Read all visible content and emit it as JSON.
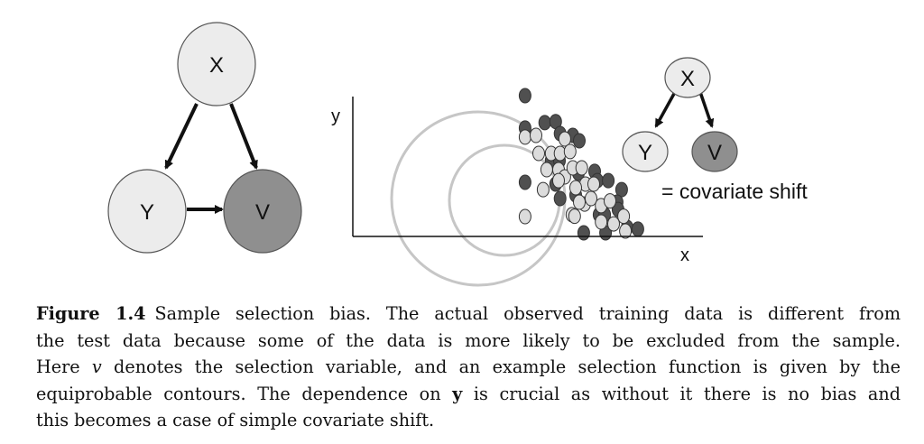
{
  "diagram_left": {
    "nodes": [
      {
        "id": "x",
        "label": "X",
        "fill": "#ececec"
      },
      {
        "id": "y",
        "label": "Y",
        "fill": "#ececec"
      },
      {
        "id": "v",
        "label": "V",
        "fill": "#8f8f8f"
      }
    ],
    "edges": [
      [
        "x",
        "y"
      ],
      [
        "x",
        "v"
      ],
      [
        "y",
        "v"
      ]
    ]
  },
  "diagram_right": {
    "nodes": [
      {
        "id": "x",
        "label": "X",
        "fill": "#ececec"
      },
      {
        "id": "y",
        "label": "Y",
        "fill": "#ececec"
      },
      {
        "id": "v",
        "label": "V",
        "fill": "#8f8f8f"
      }
    ],
    "edges": [
      [
        "x",
        "y"
      ],
      [
        "x",
        "v"
      ]
    ],
    "note": "= covariate shift"
  },
  "chart_data": {
    "type": "scatter",
    "xlabel": "x",
    "ylabel": "y",
    "grid": false,
    "series": [
      {
        "fill": "#505050",
        "points": [
          [
            77.3,
            90.7
          ],
          [
            77.3,
            69.8
          ],
          [
            86.1,
            73.3
          ],
          [
            91.0,
            74.0
          ],
          [
            98.7,
            65.1
          ],
          [
            93.0,
            66.3
          ],
          [
            101.6,
            61.6
          ],
          [
            89.0,
            48.8
          ],
          [
            92.7,
            48.8
          ],
          [
            101.2,
            40.7
          ],
          [
            108.5,
            41.9
          ],
          [
            77.3,
            34.9
          ],
          [
            91.0,
            33.7
          ],
          [
            93.0,
            24.4
          ],
          [
            100.0,
            26.7
          ],
          [
            109.7,
            36.0
          ],
          [
            114.6,
            36.0
          ],
          [
            120.6,
            30.2
          ],
          [
            118.6,
            22.1
          ],
          [
            110.5,
            14.0
          ],
          [
            113.0,
            14.0
          ],
          [
            119.0,
            17.4
          ],
          [
            123.1,
            5.8
          ],
          [
            127.9,
            4.7
          ],
          [
            113.4,
            2.3
          ],
          [
            103.6,
            2.3
          ]
        ]
      },
      {
        "fill": "#dcdcdc",
        "points": [
          [
            77.3,
            64.0
          ],
          [
            82.2,
            65.1
          ],
          [
            83.4,
            53.5
          ],
          [
            87.0,
            43.0
          ],
          [
            92.3,
            43.0
          ],
          [
            95.1,
            38.4
          ],
          [
            92.3,
            36.0
          ],
          [
            85.4,
            30.2
          ],
          [
            89.0,
            53.5
          ],
          [
            93.0,
            53.5
          ],
          [
            95.1,
            62.8
          ],
          [
            97.5,
            54.7
          ],
          [
            98.7,
            44.2
          ],
          [
            102.7,
            44.2
          ],
          [
            104.4,
            33.7
          ],
          [
            100.0,
            31.4
          ],
          [
            108.1,
            33.7
          ],
          [
            104.0,
            20.9
          ],
          [
            106.9,
            24.4
          ],
          [
            111.4,
            19.8
          ],
          [
            101.6,
            22.1
          ],
          [
            98.3,
            14.0
          ],
          [
            99.5,
            13.0
          ],
          [
            111.4,
            9.3
          ],
          [
            115.4,
            22.9
          ],
          [
            117.0,
            8.1
          ],
          [
            121.5,
            13.0
          ],
          [
            122.3,
            3.5
          ],
          [
            77.3,
            12.8
          ]
        ]
      }
    ],
    "contours": {
      "stroke": "#c6c6c6"
    }
  },
  "caption": {
    "label": "Figure 1.4",
    "lines": [
      "Sample selection bias. The actual observed training data is different from",
      "the test data because some of the data is more likely to be excluded from the sample.",
      "Here ",
      " denotes the selection variable, and an example selection function is given by the",
      "equiprobable contours. The dependence on ",
      " is crucial as without it there is no bias and",
      "this becomes a case of simple covariate shift."
    ],
    "var_v": "v",
    "var_y": "y"
  }
}
